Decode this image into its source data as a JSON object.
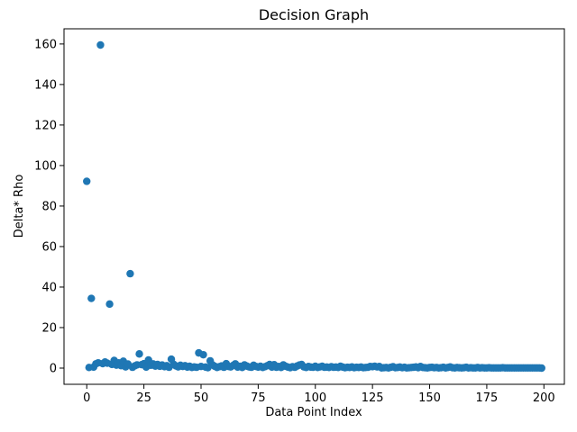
{
  "chart_data": {
    "type": "scatter",
    "title": "Decision Graph",
    "x_label": "Data Point Index",
    "y_label": "Delta* Rho",
    "color": "#1f77b4",
    "x": [
      0,
      1,
      2,
      3,
      4,
      5,
      6,
      7,
      8,
      9,
      10,
      11,
      12,
      13,
      14,
      15,
      16,
      17,
      18,
      19,
      20,
      21,
      22,
      23,
      24,
      25,
      26,
      27,
      28,
      29,
      30,
      31,
      32,
      33,
      34,
      35,
      36,
      37,
      38,
      39,
      40,
      41,
      42,
      43,
      44,
      45,
      46,
      47,
      48,
      49,
      50,
      51,
      52,
      53,
      54,
      55,
      56,
      57,
      58,
      59,
      60,
      61,
      62,
      63,
      64,
      65,
      66,
      67,
      68,
      69,
      70,
      71,
      72,
      73,
      74,
      75,
      76,
      77,
      78,
      79,
      80,
      81,
      82,
      83,
      84,
      85,
      86,
      87,
      88,
      89,
      90,
      91,
      92,
      93,
      94,
      95,
      96,
      97,
      98,
      99,
      100,
      101,
      102,
      103,
      104,
      105,
      106,
      107,
      108,
      109,
      110,
      111,
      112,
      113,
      114,
      115,
      116,
      117,
      118,
      119,
      120,
      121,
      122,
      123,
      124,
      125,
      126,
      127,
      128,
      129,
      130,
      131,
      132,
      133,
      134,
      135,
      136,
      137,
      138,
      139,
      140,
      141,
      142,
      143,
      144,
      145,
      146,
      147,
      148,
      149,
      150,
      151,
      152,
      153,
      154,
      155,
      156,
      157,
      158,
      159,
      160,
      161,
      162,
      163,
      164,
      165,
      166,
      167,
      168,
      169,
      170,
      171,
      172,
      173,
      174,
      175,
      176,
      177,
      178,
      179,
      180,
      181,
      182,
      183,
      184,
      185,
      186,
      187,
      188,
      189,
      190,
      191,
      192,
      193,
      194,
      195,
      196,
      197,
      198,
      199
    ],
    "values": [
      92.2,
      0.3,
      34.4,
      0.5,
      2.1,
      2.6,
      159.5,
      2.2,
      3.0,
      2.4,
      31.6,
      1.8,
      3.8,
      1.5,
      2.6,
      1.2,
      3.4,
      0.6,
      2.0,
      46.6,
      0.4,
      1.1,
      1.6,
      7.0,
      1.7,
      2.2,
      0.5,
      4.0,
      1.4,
      2.1,
      1.0,
      1.8,
      0.9,
      1.5,
      0.7,
      1.2,
      0.4,
      4.4,
      1.9,
      1.1,
      0.6,
      1.4,
      0.8,
      1.2,
      0.5,
      0.9,
      0.3,
      0.6,
      0.4,
      7.5,
      0.8,
      6.6,
      0.5,
      0.2,
      3.6,
      1.6,
      0.9,
      0.3,
      0.7,
      1.1,
      0.4,
      2.2,
      0.8,
      0.6,
      1.3,
      2.1,
      0.5,
      0.9,
      0.3,
      1.6,
      1.0,
      0.6,
      0.4,
      1.4,
      0.8,
      0.5,
      0.9,
      0.3,
      0.7,
      1.2,
      1.8,
      0.5,
      1.7,
      0.4,
      0.8,
      0.3,
      1.6,
      0.9,
      0.5,
      0.2,
      0.7,
      0.4,
      1.0,
      1.5,
      1.8,
      0.6,
      0.3,
      0.8,
      0.5,
      0.4,
      0.9,
      0.3,
      0.6,
      0.9,
      0.4,
      0.5,
      0.3,
      0.7,
      0.4,
      0.5,
      0.3,
      0.9,
      0.5,
      0.2,
      0.4,
      0.3,
      0.6,
      0.2,
      0.4,
      0.3,
      0.5,
      0.2,
      0.3,
      0.4,
      0.8,
      0.7,
      0.9,
      0.6,
      0.8,
      0.1,
      0.2,
      0.3,
      0.1,
      0.4,
      0.7,
      0.2,
      0.3,
      0.5,
      0.2,
      0.4,
      0.1,
      0.2,
      0.3,
      0.4,
      0.6,
      0.2,
      0.8,
      0.3,
      0.2,
      0.1,
      0.3,
      0.4,
      0.2,
      0.3,
      0.1,
      0.2,
      0.4,
      0.1,
      0.3,
      0.6,
      0.2,
      0.1,
      0.3,
      0.2,
      0.1,
      0.2,
      0.4,
      0.1,
      0.2,
      0.1,
      0.1,
      0.3,
      0.1,
      0.2,
      0.1,
      0.1,
      0.2,
      0.1,
      0.1,
      0.1,
      0.1,
      0.1,
      0.2,
      0.1,
      0.1,
      0.1,
      0.1,
      0.1,
      0.1,
      0.1,
      0.1,
      0.1,
      0.1,
      0.1,
      0.1,
      0.1,
      0.1,
      0.1,
      0.1,
      0.0
    ],
    "xlim": [
      -9.95,
      208.95
    ],
    "xticks": [
      0,
      25,
      50,
      75,
      100,
      125,
      150,
      175,
      200
    ],
    "ylim": [
      -8,
      167.5
    ],
    "yticks": [
      0,
      20,
      40,
      60,
      80,
      100,
      120,
      140,
      160
    ],
    "grid": false
  }
}
